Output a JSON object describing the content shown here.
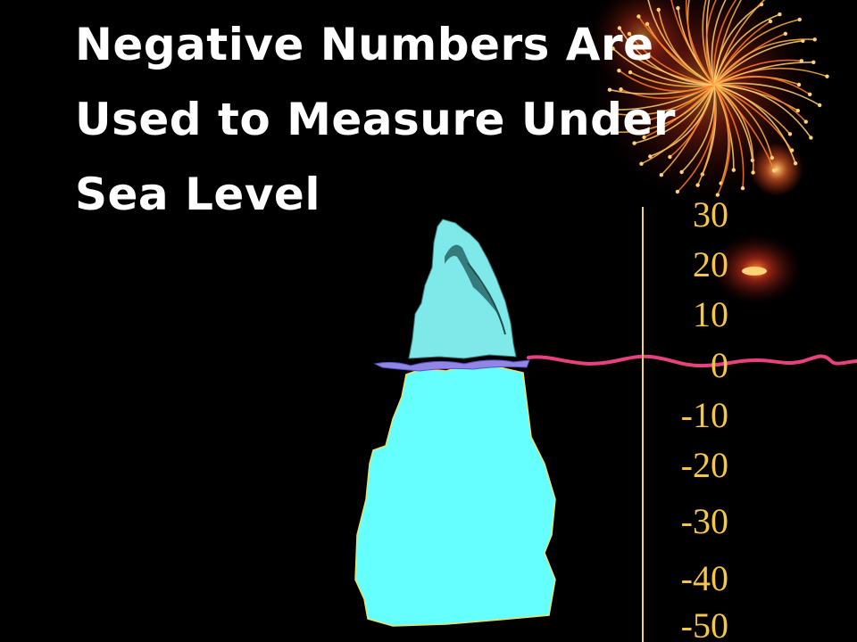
{
  "slide": {
    "title": "Negative Numbers Are Used to Measure Under Sea Level",
    "colors": {
      "background": "#000000",
      "title": "#ffffff",
      "scale_numbers": "#f5c64a",
      "scale_line": "#f5d45a",
      "sea_level_wave": "#e8417f",
      "iceberg_tip": "#7fe8e8",
      "iceberg_body": "#66ffff",
      "waterline": "#8f86e6"
    },
    "scale": {
      "labels": [
        "30",
        "20",
        "10",
        "0",
        "-10",
        "-20",
        "-30",
        "-40",
        "-50"
      ]
    },
    "decorations": [
      "firework-burst-top-right",
      "glowing-orb-right",
      "iceberg",
      "sea-level-wave"
    ]
  }
}
